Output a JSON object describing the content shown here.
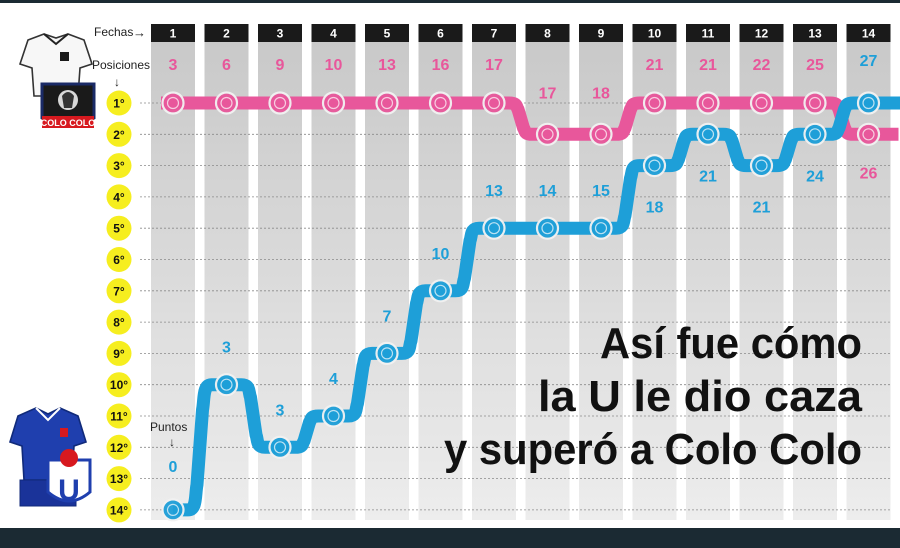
{
  "header": {
    "fechas_label": "Fechas",
    "fechas_arrow": "→",
    "posiciones_label": "Posiciones",
    "posiciones_arrow": "↓",
    "puntos_label": "Puntos",
    "puntos_arrow": "↓"
  },
  "teams": {
    "colo_colo": {
      "badge_text": "COLO COLO",
      "color": "#e8579b"
    },
    "u_de_chile": {
      "badge_text": "U",
      "color": "#1e9fd8"
    }
  },
  "headline": {
    "line1": "Así fue cómo",
    "line2": "la  U le dio caza",
    "line3": "y superó a Colo Colo"
  },
  "chart_data": {
    "type": "line",
    "title": "",
    "xlabel": "Fechas",
    "ylabel": "Posiciones",
    "x": [
      1,
      2,
      3,
      4,
      5,
      6,
      7,
      8,
      9,
      10,
      11,
      12,
      13,
      14
    ],
    "x_tick_labels": [
      "1",
      "2",
      "3",
      "4",
      "5",
      "6",
      "7",
      "8",
      "9",
      "10",
      "11",
      "12",
      "13",
      "14"
    ],
    "y_tick_labels": [
      "1°",
      "2°",
      "3°",
      "4°",
      "5°",
      "6°",
      "7°",
      "8°",
      "9°",
      "10°",
      "11°",
      "12°",
      "13°",
      "14°"
    ],
    "ylim": [
      1,
      14
    ],
    "y_inverted": true,
    "grid": true,
    "series": [
      {
        "key": "colo_colo",
        "positions": [
          1,
          1,
          1,
          1,
          1,
          1,
          1,
          2,
          2,
          1,
          1,
          1,
          1,
          2
        ],
        "points": [
          3,
          6,
          9,
          10,
          13,
          16,
          17,
          17,
          18,
          21,
          21,
          22,
          25,
          26
        ],
        "color": "#e8579b"
      },
      {
        "key": "u_de_chile",
        "positions": [
          14,
          10,
          12,
          11,
          9,
          7,
          5,
          5,
          5,
          3,
          2,
          3,
          2,
          1
        ],
        "points": [
          0,
          3,
          3,
          4,
          7,
          10,
          13,
          14,
          15,
          18,
          21,
          21,
          24,
          27
        ],
        "color": "#1e9fd8"
      }
    ]
  }
}
